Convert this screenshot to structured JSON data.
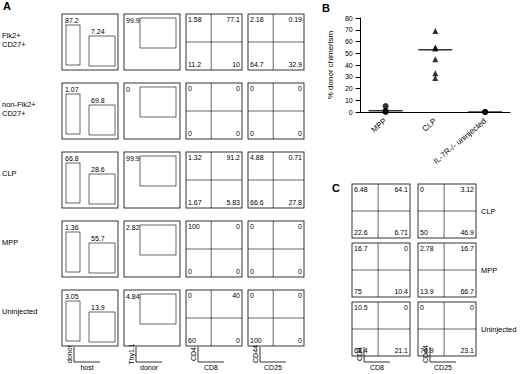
{
  "panel_a": {
    "label": "A",
    "rows": [
      {
        "label": [
          "Flk2+",
          "CD27+"
        ],
        "gates": [
          87.2,
          7.24
        ],
        "thy": 99.9,
        "cd4cd8": [
          1.58,
          77.1,
          11.2,
          10
        ],
        "cd44cd25": [
          2.18,
          0.19,
          64.7,
          32.9
        ]
      },
      {
        "label": [
          "non-Flk2+",
          "CD27+"
        ],
        "gates": [
          1.07,
          69.8
        ],
        "thy": 0,
        "cd4cd8": [
          0,
          0,
          0,
          0
        ],
        "cd44cd25": [
          0,
          0,
          0,
          0
        ]
      },
      {
        "label": [
          "CLP"
        ],
        "gates": [
          66.8,
          28.6
        ],
        "thy": 99.9,
        "cd4cd8": [
          1.32,
          91.2,
          1.67,
          5.83
        ],
        "cd44cd25": [
          4.88,
          0.71,
          66.6,
          27.8
        ]
      },
      {
        "label": [
          "MPP"
        ],
        "gates": [
          1.36,
          55.7
        ],
        "thy": 2.82,
        "cd4cd8": [
          100,
          0,
          0,
          0
        ],
        "cd44cd25": [
          0,
          0,
          0,
          0
        ]
      },
      {
        "label": [
          "Uninjected"
        ],
        "gates": [
          3.05,
          13.9
        ],
        "thy": 4.84,
        "cd4cd8": [
          0,
          40,
          60,
          0
        ],
        "cd44cd25": [
          0,
          0,
          100,
          0
        ]
      }
    ],
    "axes": [
      {
        "y": "donor",
        "x": "host"
      },
      {
        "y": "Thy1.1",
        "x": "donor"
      },
      {
        "y": "CD4",
        "x": "CD8"
      },
      {
        "y": "CD44",
        "x": "CD25"
      }
    ]
  },
  "chart_data": {
    "type": "scatter",
    "label": "B",
    "ylabel": "% donor chimerism",
    "categories": [
      "MPP",
      "CLP",
      "IL-7R-/- uninjected"
    ],
    "points": [
      [
        5,
        1,
        0.5,
        0.3,
        0.2
      ],
      [
        69,
        55,
        54,
        45,
        33,
        29
      ],
      [
        0,
        0,
        0
      ]
    ],
    "markers": [
      "circle",
      "triangle",
      "circle"
    ],
    "medians": [
      1,
      53,
      0
    ],
    "color": "#000000",
    "ylim": [
      0,
      80
    ],
    "yticks": [
      0,
      10,
      20,
      30,
      40,
      50,
      60,
      70,
      80
    ],
    "grid": false
  },
  "panel_c": {
    "label": "C",
    "rows": [
      {
        "label": "CLP",
        "cd4cd8": [
          6.48,
          64.1,
          22.6,
          6.71
        ],
        "cd44cd25": [
          0,
          3.12,
          50,
          46.9
        ]
      },
      {
        "label": "MPP",
        "cd4cd8": [
          16.7,
          0,
          75,
          10.4
        ],
        "cd44cd25": [
          2.78,
          16.7,
          13.9,
          66.7
        ]
      },
      {
        "label": "Uninjected",
        "cd4cd8": [
          10.5,
          0,
          68.4,
          21.1
        ],
        "cd44cd25": [
          0,
          0,
          76.9,
          23.1
        ]
      }
    ],
    "axes": [
      {
        "y": "CD4",
        "x": "CD8"
      },
      {
        "y": "CD44",
        "x": "CD25"
      }
    ]
  }
}
